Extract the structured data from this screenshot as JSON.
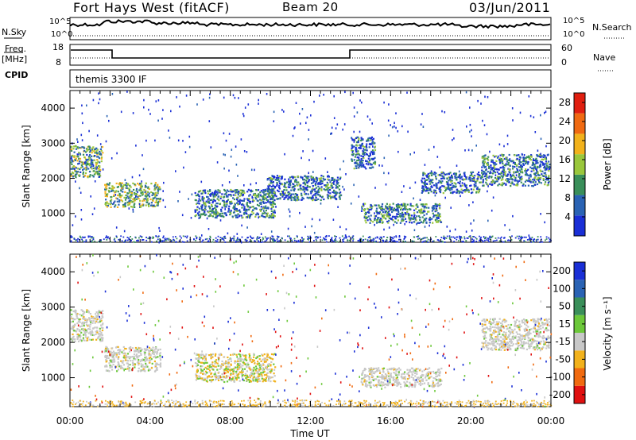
{
  "header": {
    "station": "Fort Hays West (fitACF)",
    "beam": "Beam 20",
    "date": "03/Jun/2011"
  },
  "status_panels": {
    "nsky_label": "N.Sky",
    "nsky_ticks": [
      "10^5",
      "10^0"
    ],
    "nsearch_label": "N.Search",
    "nsearch_ticks": [
      "10^5",
      "10^0"
    ],
    "freq_label": "Freq.",
    "freq_unit": "[MHz]",
    "freq_ticks": [
      "18",
      "8"
    ],
    "nave_label": "Nave",
    "nave_ticks": [
      "60",
      "0"
    ],
    "cpid_label": "CPID",
    "cpid_value": "themis 3300 IF"
  },
  "chart_data": [
    {
      "type": "heatmap",
      "title": "",
      "xlabel": "",
      "ylabel": "Slant Range [km]",
      "colorbar_label": "Power [dB]",
      "xlim": [
        0,
        24
      ],
      "ylim": [
        180,
        4500
      ],
      "ytick_labels": [
        "1000",
        "2000",
        "3000",
        "4000"
      ],
      "colorbar_ticks": [
        "4",
        "8",
        "12",
        "16",
        "20",
        "24",
        "28"
      ],
      "colorbar_range": [
        0,
        30
      ],
      "colors": [
        "#1a2fd6",
        "#2a63b4",
        "#3a8f5a",
        "#9ac73c",
        "#f2b21c",
        "#f06a12",
        "#e01f10"
      ],
      "regions_hours_km": [
        {
          "t0": 0.0,
          "t1": 1.6,
          "r0": 2050,
          "r1": 2950,
          "level": 0.5
        },
        {
          "t0": 1.7,
          "t1": 4.5,
          "r0": 1200,
          "r1": 1900,
          "level": 0.55
        },
        {
          "t0": 6.2,
          "t1": 10.2,
          "r0": 900,
          "r1": 1700,
          "level": 0.35
        },
        {
          "t0": 9.8,
          "t1": 13.5,
          "r0": 1400,
          "r1": 2100,
          "level": 0.3
        },
        {
          "t0": 14.5,
          "t1": 18.5,
          "r0": 750,
          "r1": 1300,
          "level": 0.4
        },
        {
          "t0": 17.5,
          "t1": 20.5,
          "r0": 1600,
          "r1": 2200,
          "level": 0.3
        },
        {
          "t0": 20.5,
          "t1": 23.9,
          "r0": 1800,
          "r1": 2700,
          "level": 0.35
        },
        {
          "t0": 14.0,
          "t1": 15.2,
          "r0": 2300,
          "r1": 3200,
          "level": 0.3
        }
      ]
    },
    {
      "type": "heatmap",
      "title": "",
      "xlabel": "Time UT",
      "ylabel": "Slant Range [km]",
      "colorbar_label": "Velocity [m s⁻¹]",
      "xlim": [
        0,
        24
      ],
      "ylim": [
        180,
        4500
      ],
      "xtick_labels": [
        "00:00",
        "04:00",
        "08:00",
        "12:00",
        "16:00",
        "20:00",
        "00:00"
      ],
      "ytick_labels": [
        "1000",
        "2000",
        "3000",
        "4000"
      ],
      "colorbar_ticks": [
        "200",
        "100",
        "50",
        "15",
        "-15",
        "-50",
        "-100",
        "-200"
      ],
      "colors": [
        "#e01010",
        "#f06a10",
        "#f2b21c",
        "#c8c8c8",
        "#6cc83a",
        "#3a8f5a",
        "#2a63b4",
        "#1a2fd6"
      ],
      "regions_hours_km": [
        {
          "t0": 0.0,
          "t1": 1.6,
          "r0": 2050,
          "r1": 2950,
          "velocity_class": "grey"
        },
        {
          "t0": 1.7,
          "t1": 4.5,
          "r0": 1200,
          "r1": 1900,
          "velocity_class": "grey"
        },
        {
          "t0": 6.2,
          "t1": 10.2,
          "r0": 900,
          "r1": 1700,
          "velocity_class": "orange-green"
        },
        {
          "t0": 14.5,
          "t1": 18.5,
          "r0": 750,
          "r1": 1300,
          "velocity_class": "grey"
        },
        {
          "t0": 20.5,
          "t1": 23.9,
          "r0": 1800,
          "r1": 2700,
          "velocity_class": "grey"
        }
      ]
    }
  ]
}
